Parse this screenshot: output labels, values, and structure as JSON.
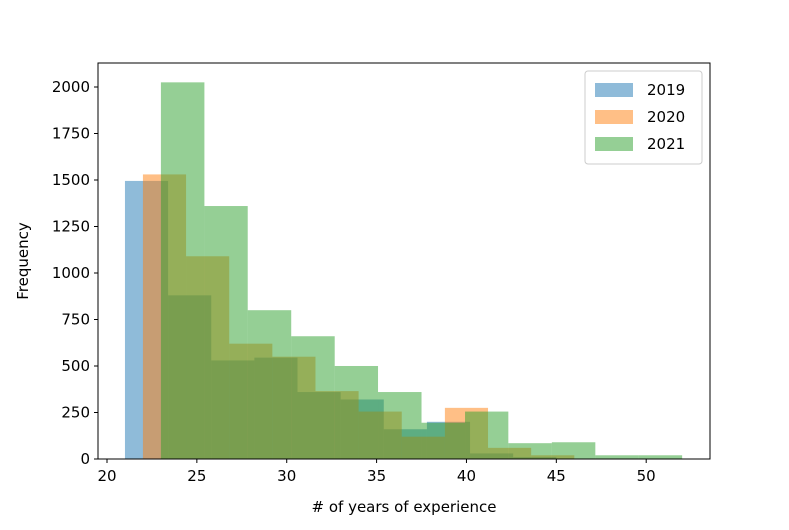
{
  "chart_data": {
    "type": "histogram",
    "xlabel": "# of years of experience",
    "ylabel": "Frequency",
    "series": [
      {
        "name": "2019",
        "color": "#1f77b4",
        "bins": [
          21,
          23.4,
          25.8,
          28.2,
          30.6,
          33,
          35.4,
          37.8,
          40.2,
          42.6,
          45
        ],
        "values": [
          1495,
          880,
          530,
          545,
          360,
          320,
          160,
          200,
          30,
          10
        ]
      },
      {
        "name": "2020",
        "color": "#ff7f0e",
        "bins": [
          22,
          24.4,
          26.8,
          29.2,
          31.6,
          34,
          36.4,
          38.8,
          41.2,
          43.6,
          46
        ],
        "values": [
          1530,
          1090,
          620,
          550,
          365,
          255,
          120,
          275,
          60,
          20
        ]
      },
      {
        "name": "2021",
        "color": "#2ca02c",
        "bins": [
          23,
          25.42,
          27.83,
          30.25,
          32.67,
          35.08,
          37.5,
          39.92,
          42.33,
          44.75,
          47.17,
          49.58,
          52
        ],
        "values": [
          2025,
          1360,
          800,
          660,
          500,
          360,
          195,
          255,
          85,
          90,
          20,
          20
        ]
      }
    ],
    "opacity": 0.5,
    "xlim": [
      19.5,
      53.55
    ],
    "ylim": [
      0,
      2129
    ],
    "xticks": [
      20,
      25,
      30,
      35,
      40,
      45,
      50
    ],
    "yticks": [
      0,
      250,
      500,
      750,
      1000,
      1250,
      1500,
      1750,
      2000
    ],
    "legend": "upper right"
  }
}
